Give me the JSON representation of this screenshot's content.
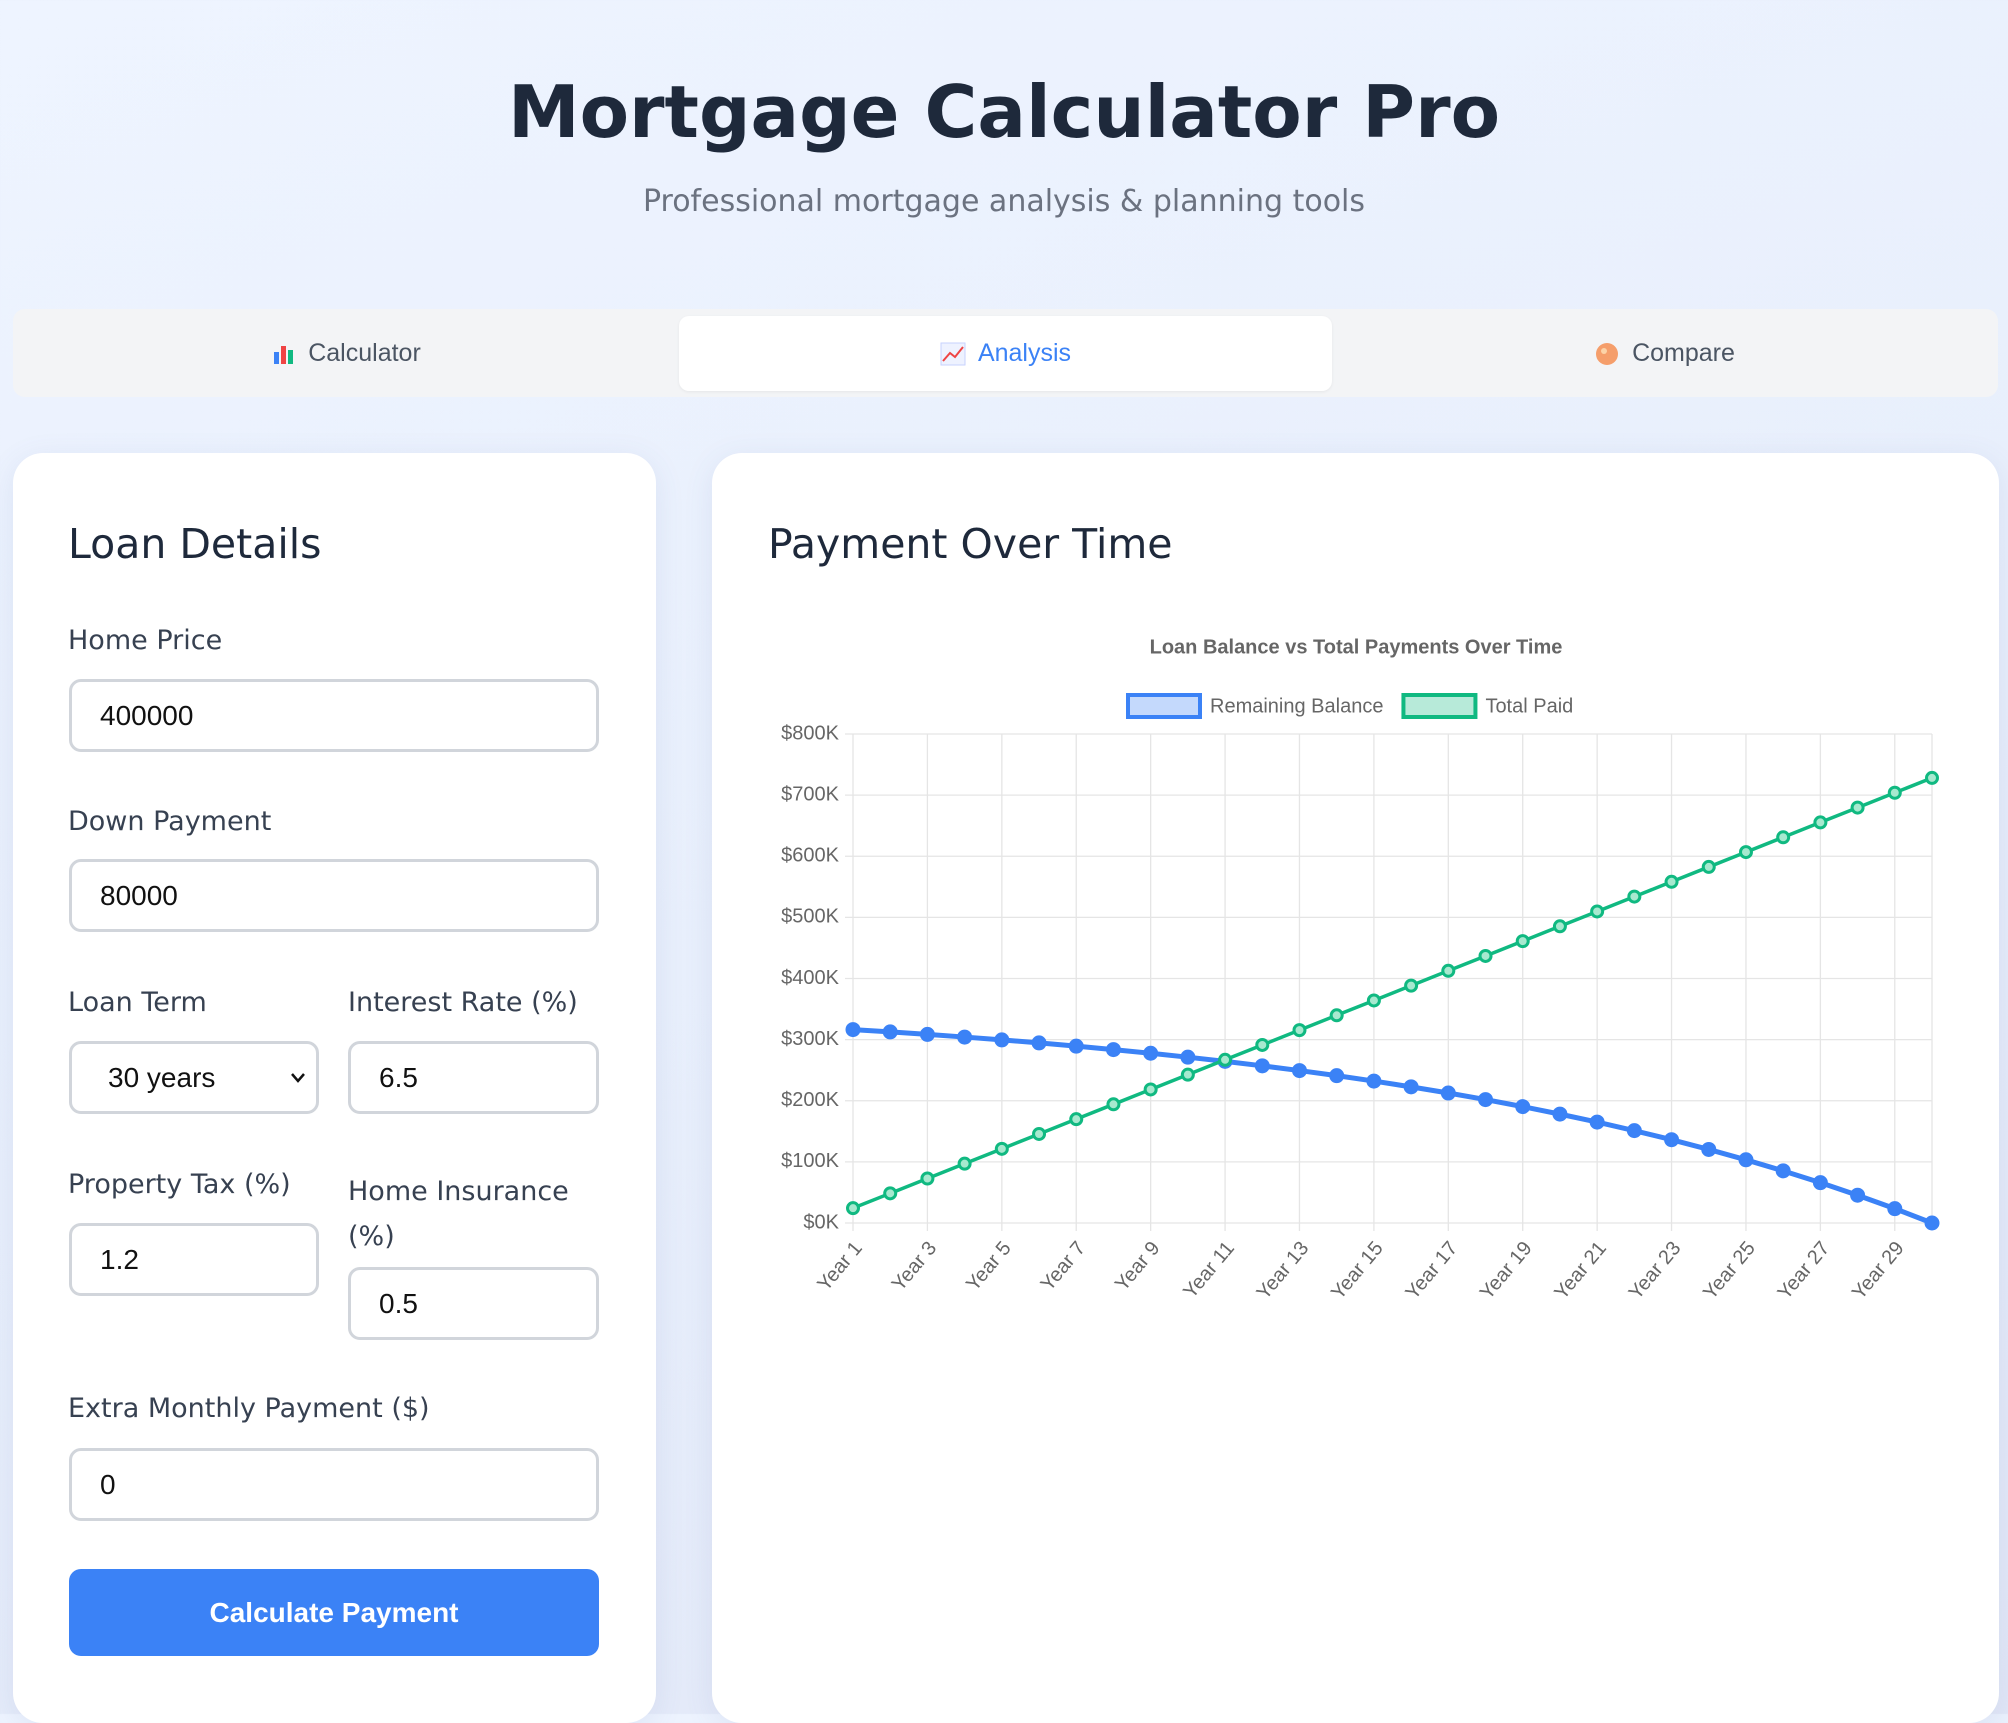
{
  "header": {
    "title": "Mortgage Calculator Pro",
    "subtitle": "Professional mortgage analysis & planning tools"
  },
  "tabs": [
    "Calculator",
    "Analysis",
    "Compare"
  ],
  "form": {
    "title": "Loan Details",
    "fields": [
      {
        "label": "Home Price",
        "value": "400000"
      },
      {
        "label": "Down Payment",
        "value": "80000"
      },
      {
        "label": "Loan Term",
        "value": "30 years"
      },
      {
        "label": "Interest Rate (%)",
        "value": "6.5"
      },
      {
        "label": "Property Tax (%)",
        "value": "1.2"
      },
      {
        "label": "Home Insurance (%)",
        "value": "0.5"
      },
      {
        "label": "Extra Monthly Payment ($)",
        "value": "0"
      }
    ],
    "button": "Calculate Payment"
  },
  "panel": {
    "title": "Payment Over Time"
  },
  "chart_data": {
    "type": "line",
    "title": "Loan Balance vs Total Payments Over Time",
    "categories": [
      "Year 1",
      null,
      "Year 3",
      null,
      "Year 5",
      null,
      "Year 7",
      null,
      "Year 9",
      null,
      "Year 11",
      null,
      "Year 13",
      null,
      "Year 15",
      null,
      "Year 17",
      null,
      "Year 19",
      null,
      "Year 21",
      null,
      "Year 23",
      null,
      "Year 25",
      null,
      "Year 27",
      null,
      "Year 29",
      null
    ],
    "series": [
      {
        "name": "Remaining Balance",
        "color": "#3b82f6",
        "values": [
          316423,
          312607,
          308535,
          304191,
          299556,
          294610,
          289333,
          283703,
          277696,
          271285,
          264446,
          257150,
          249365,
          241058,
          232195,
          222738,
          212648,
          201882,
          190395,
          178140,
          165063,
          151111,
          136224,
          120341,
          103393,
          85310,
          66017,
          45431,
          23468,
          0
        ]
      },
      {
        "name": "Total Paid",
        "color": "#10b981",
        "values": [
          24271,
          48543,
          72814,
          97086,
          121357,
          145629,
          169900,
          194172,
          218443,
          242715,
          266986,
          291258,
          315529,
          339801,
          364072,
          388344,
          412615,
          436887,
          461158,
          485430,
          509701,
          533973,
          558244,
          582516,
          606787,
          631059,
          655330,
          679602,
          703873,
          728145
        ]
      }
    ],
    "ylim": [
      0,
      800000
    ],
    "yticks": [
      {
        "value": 0,
        "label": "$0K"
      },
      {
        "value": 100000,
        "label": "$100K"
      },
      {
        "value": 200000,
        "label": "$200K"
      },
      {
        "value": 300000,
        "label": "$300K"
      },
      {
        "value": 400000,
        "label": "$400K"
      },
      {
        "value": 500000,
        "label": "$500K"
      },
      {
        "value": 600000,
        "label": "$600K"
      },
      {
        "value": 700000,
        "label": "$700K"
      },
      {
        "value": 800000,
        "label": "$800K"
      }
    ],
    "grid": true,
    "legend": "top"
  }
}
